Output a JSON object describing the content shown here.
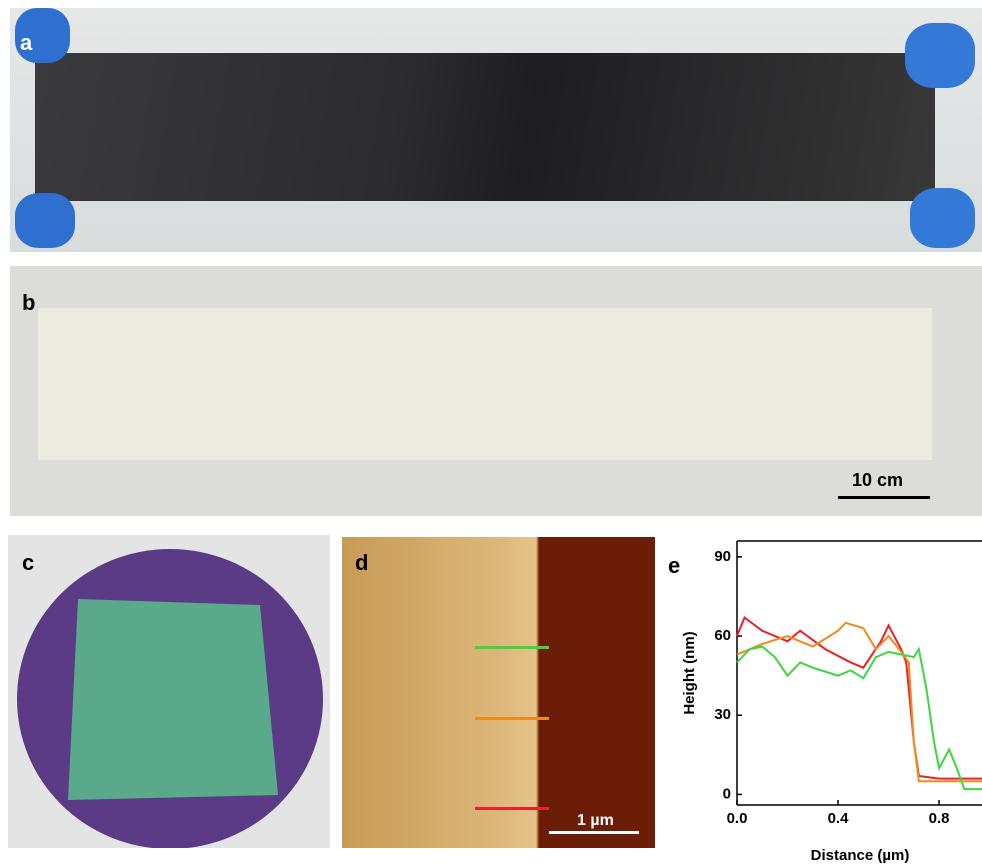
{
  "panels": {
    "a": {
      "label": "a"
    },
    "b": {
      "label": "b",
      "scale_bar": "10 cm"
    },
    "c": {
      "label": "c"
    },
    "d": {
      "label": "d",
      "scale_bar": "1 µm"
    },
    "e": {
      "label": "e"
    }
  },
  "chart_data": {
    "type": "line",
    "xlabel": "Distance (µm)",
    "ylabel": "Height (nm)",
    "xlim": [
      0,
      0.97
    ],
    "ylim": [
      -4,
      96
    ],
    "xticks": [
      {
        "value": 0,
        "label": "0.0"
      },
      0.4,
      0.8
    ],
    "yticks": [
      0,
      30,
      60,
      90
    ],
    "series": [
      {
        "color": "#e8212a",
        "x": [
          0,
          0.03,
          0.1,
          0.2,
          0.25,
          0.35,
          0.45,
          0.5,
          0.57,
          0.6,
          0.65,
          0.67,
          0.7,
          0.72,
          0.8,
          0.97
        ],
        "values": [
          60,
          67,
          62,
          58,
          62,
          55,
          50,
          48,
          58,
          64,
          55,
          50,
          20,
          7,
          6,
          6
        ]
      },
      {
        "color": "#f08a1c",
        "x": [
          0,
          0.1,
          0.2,
          0.3,
          0.4,
          0.43,
          0.5,
          0.55,
          0.6,
          0.65,
          0.68,
          0.7,
          0.72,
          0.97
        ],
        "values": [
          53,
          57,
          60,
          56,
          62,
          65,
          63,
          55,
          60,
          54,
          50,
          20,
          5,
          5
        ]
      },
      {
        "color": "#3dd63d",
        "x": [
          0,
          0.05,
          0.1,
          0.15,
          0.2,
          0.25,
          0.3,
          0.4,
          0.45,
          0.5,
          0.55,
          0.6,
          0.7,
          0.72,
          0.75,
          0.78,
          0.8,
          0.84,
          0.87,
          0.9,
          0.97
        ],
        "values": [
          50,
          55,
          56,
          52,
          45,
          50,
          48,
          45,
          47,
          44,
          52,
          54,
          52,
          55,
          40,
          20,
          10,
          17,
          10,
          2,
          2
        ]
      }
    ]
  }
}
